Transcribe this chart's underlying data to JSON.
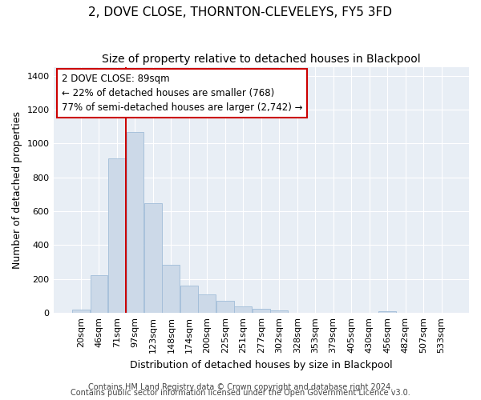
{
  "title": "2, DOVE CLOSE, THORNTON-CLEVELEYS, FY5 3FD",
  "subtitle": "Size of property relative to detached houses in Blackpool",
  "xlabel": "Distribution of detached houses by size in Blackpool",
  "ylabel": "Number of detached properties",
  "bar_labels": [
    "20sqm",
    "46sqm",
    "71sqm",
    "97sqm",
    "123sqm",
    "148sqm",
    "174sqm",
    "200sqm",
    "225sqm",
    "251sqm",
    "277sqm",
    "302sqm",
    "328sqm",
    "353sqm",
    "379sqm",
    "405sqm",
    "430sqm",
    "456sqm",
    "482sqm",
    "507sqm",
    "533sqm"
  ],
  "bar_values": [
    20,
    225,
    910,
    1070,
    650,
    285,
    160,
    110,
    70,
    40,
    25,
    15,
    0,
    0,
    0,
    0,
    0,
    10,
    0,
    0,
    0
  ],
  "bar_color": "#ccd9e8",
  "bar_edgecolor": "#a0bcd8",
  "bar_linewidth": 0.6,
  "vline_color": "#cc0000",
  "vline_x": 2.5,
  "vline_linewidth": 1.4,
  "annotation_text_line1": "2 DOVE CLOSE: 89sqm",
  "annotation_text_line2": "← 22% of detached houses are smaller (768)",
  "annotation_text_line3": "77% of semi-detached houses are larger (2,742) →",
  "ylim": [
    0,
    1450
  ],
  "yticks": [
    0,
    200,
    400,
    600,
    800,
    1000,
    1200,
    1400
  ],
  "fig_facecolor": "#ffffff",
  "ax_facecolor": "#e8eef5",
  "grid_color": "#ffffff",
  "footer_line1": "Contains HM Land Registry data © Crown copyright and database right 2024.",
  "footer_line2": "Contains public sector information licensed under the Open Government Licence v3.0.",
  "title_fontsize": 11,
  "subtitle_fontsize": 10,
  "xlabel_fontsize": 9,
  "ylabel_fontsize": 9,
  "tick_fontsize": 8,
  "annot_fontsize": 8.5,
  "footer_fontsize": 7
}
